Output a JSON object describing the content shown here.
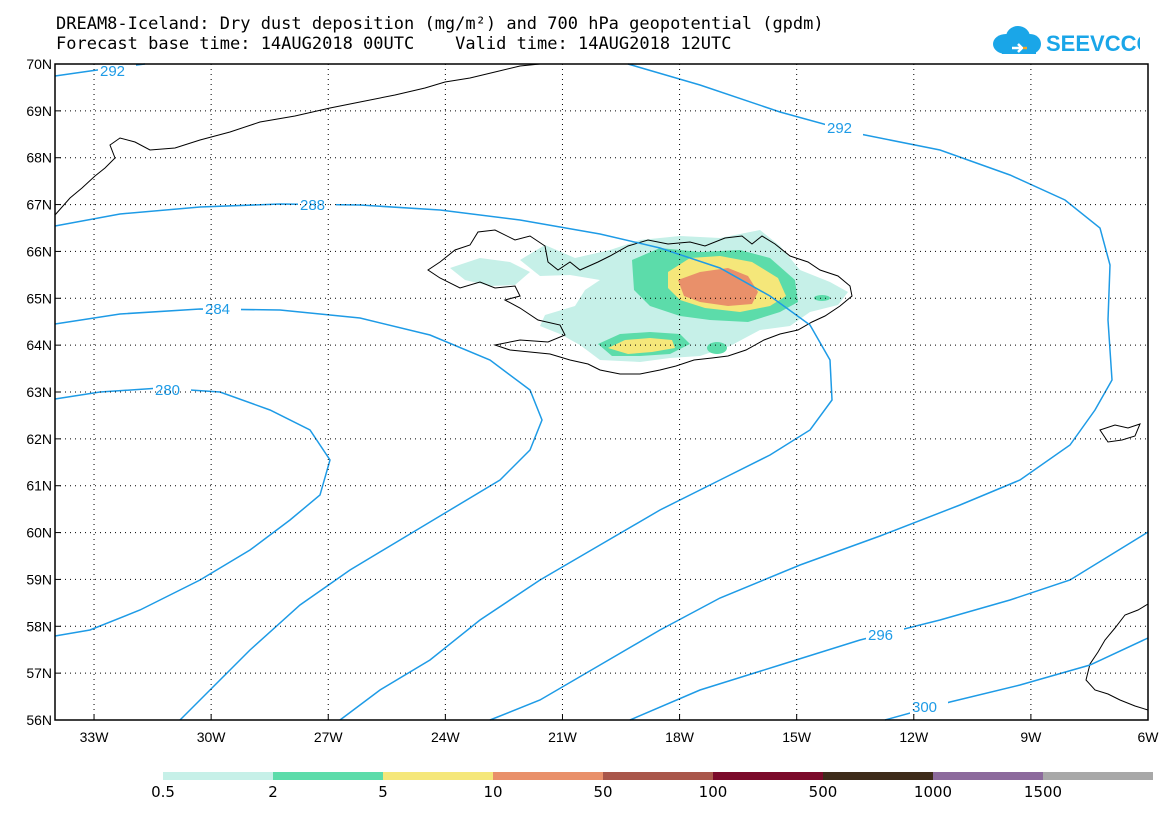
{
  "title_line1": "DREAM8-Iceland: Dry dust deposition (mg/m²) and 700 hPa geopotential (gpdm)",
  "title_line2": "Forecast base time: 14AUG2018 00UTC    Valid time: 14AUG2018 12UTC",
  "logo_text": "SEEVCCC",
  "map": {
    "lon_range": [
      -34,
      -6
    ],
    "lat_range": [
      56,
      70
    ],
    "lat_ticks": [
      "70N",
      "69N",
      "68N",
      "67N",
      "66N",
      "65N",
      "64N",
      "63N",
      "62N",
      "61N",
      "60N",
      "59N",
      "58N",
      "57N",
      "56N"
    ],
    "lon_ticks": [
      "33W",
      "30W",
      "27W",
      "24W",
      "21W",
      "18W",
      "15W",
      "12W",
      "9W",
      "6W"
    ],
    "contour_labels": [
      {
        "text": "292"
      },
      {
        "text": "292"
      },
      {
        "text": "288"
      },
      {
        "text": "284"
      },
      {
        "text": "280"
      },
      {
        "text": "296"
      },
      {
        "text": "300"
      }
    ],
    "contour_color": "#1e9be6"
  },
  "legend": {
    "labels": [
      "0.5",
      "2",
      "5",
      "10",
      "50",
      "100",
      "500",
      "1000",
      "1500"
    ],
    "colors": [
      "#c6f0e8",
      "#5cdcaa",
      "#f5e77a",
      "#e9906a",
      "#a9564a",
      "#7b0a2a",
      "#3e2b1a",
      "#8c6a9c",
      "#a8a8a8"
    ]
  }
}
